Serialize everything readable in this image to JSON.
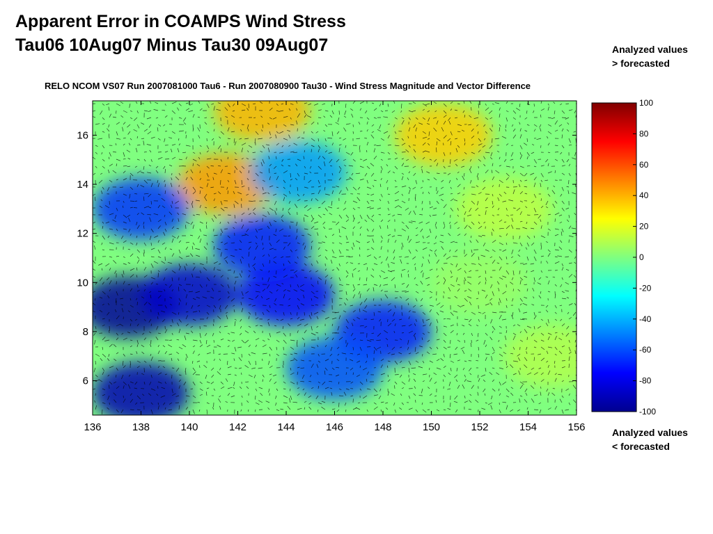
{
  "slide": {
    "title_line1": "Apparent Error in COAMPS Wind Stress",
    "title_line2": "Tau06 10Aug07 Minus Tau30 09Aug07",
    "note_top_line1": "Analyzed values",
    "note_top_line2": "> forecasted",
    "note_bottom_line1": "Analyzed values",
    "note_bottom_line2": "< forecasted"
  },
  "chart_data": {
    "type": "heatmap",
    "title": "RELO NCOM VS07 Run 2007081000 Tau6 - Run 2007080900 Tau30 - Wind Stress Magnitude and Vector Difference",
    "xlabel": "",
    "ylabel": "",
    "xlim": [
      136,
      156
    ],
    "ylim": [
      4.6,
      17.4
    ],
    "x_ticks": [
      136,
      138,
      140,
      142,
      144,
      146,
      148,
      150,
      152,
      154,
      156
    ],
    "y_ticks": [
      6,
      8,
      10,
      12,
      14,
      16
    ],
    "colorbar": {
      "range": [
        -100,
        100
      ],
      "ticks": [
        100,
        80,
        60,
        40,
        20,
        0,
        -20,
        -40,
        -60,
        -80,
        -100
      ],
      "colormap": "jet"
    },
    "overlay": "wind stress vector difference arrows",
    "field_features": [
      {
        "lon": 141.5,
        "lat": 14.0,
        "value": 45
      },
      {
        "lon": 150.5,
        "lat": 16.0,
        "value": 35
      },
      {
        "lon": 143.0,
        "lat": 17.0,
        "value": 40
      },
      {
        "lon": 137.5,
        "lat": 9.0,
        "value": -95
      },
      {
        "lon": 140.0,
        "lat": 9.5,
        "value": -85
      },
      {
        "lon": 144.0,
        "lat": 9.5,
        "value": -75
      },
      {
        "lon": 143.0,
        "lat": 11.5,
        "value": -70
      },
      {
        "lon": 148.0,
        "lat": 8.0,
        "value": -70
      },
      {
        "lon": 146.0,
        "lat": 6.5,
        "value": -60
      },
      {
        "lon": 138.0,
        "lat": 5.5,
        "value": -90
      },
      {
        "lon": 144.5,
        "lat": 14.5,
        "value": -45
      },
      {
        "lon": 138.0,
        "lat": 13.0,
        "value": -65
      },
      {
        "lon": 152.0,
        "lat": 10.0,
        "value": 5
      },
      {
        "lon": 155.0,
        "lat": 7.0,
        "value": 10
      },
      {
        "lon": 153.0,
        "lat": 13.0,
        "value": 12
      }
    ]
  }
}
